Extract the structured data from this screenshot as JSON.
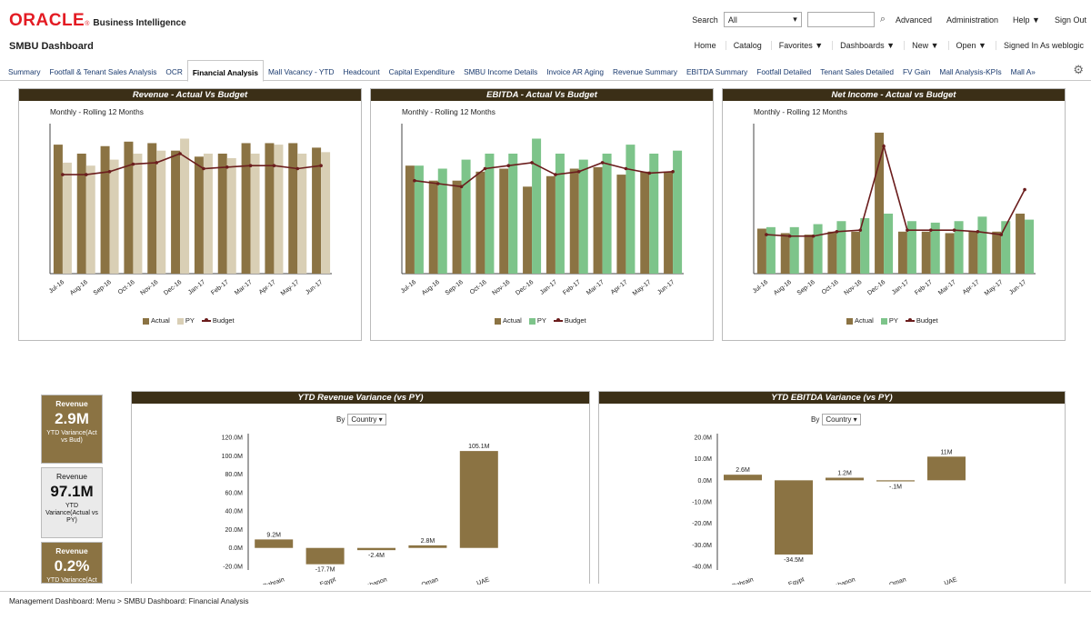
{
  "logo": {
    "brand": "ORACLE",
    "reg": "®",
    "product": "Business Intelligence"
  },
  "top": {
    "search_label": "Search",
    "search_scope": "All",
    "links": [
      "Advanced",
      "Administration",
      "Help ▼",
      "Sign Out"
    ]
  },
  "header": {
    "dashboard_title": "SMBU Dashboard",
    "nav": [
      "Home",
      "Catalog",
      "Favorites ▼",
      "Dashboards ▼",
      "New ▼",
      "Open ▼",
      "Signed In As  weblogic"
    ]
  },
  "tabs": [
    "Summary",
    "Footfall & Tenant Sales Analysis",
    "OCR",
    "Financial Analysis",
    "Mall Vacancy - YTD",
    "Headcount",
    "Capital Expenditure",
    "SMBU Income Details",
    "Invoice AR Aging",
    "Revenue Summary",
    "EBITDA Summary",
    "Footfall Detailed",
    "Tenant Sales Detailed",
    "FV Gain",
    "Mall Analysis-KPIs",
    "Mall A»"
  ],
  "active_tab": "Financial Analysis",
  "colors": {
    "actual": "#8b7343",
    "py_revenue": "#d9cfb5",
    "py_green": "#7dc48a",
    "budget": "#6b1d1d",
    "title_bar": "#3b2f17"
  },
  "panels": {
    "revenue_title": "Revenue - Actual Vs Budget",
    "ebitda_title": "EBITDA - Actual Vs Budget",
    "netincome_title": "Net Income - Actual vs Budget",
    "subtitle": "Monthly - Rolling 12 Months",
    "ytd_revenue_title": "YTD Revenue Variance (vs PY)",
    "ytd_ebitda_title": "YTD EBITDA Variance (vs PY)",
    "by_label": "By",
    "by_value": "Country"
  },
  "legend": {
    "actual": "Actual",
    "py": "PY",
    "budget": "Budget"
  },
  "kpis": [
    {
      "label": "Revenue",
      "value": "2.9M",
      "desc": "YTD Variance(Act vs Bud)"
    },
    {
      "label": "Revenue",
      "value": "97.1M",
      "desc": "YTD Variance(Actual vs PY)"
    },
    {
      "label": "Revenue",
      "value": "0.2%",
      "desc": "YTD Variance(Act"
    }
  ],
  "breadcrumb": "Management Dashboard: Menu  >  SMBU Dashboard: Financial Analysis",
  "chart_data": [
    {
      "type": "bar",
      "title": "Revenue - Actual Vs Budget",
      "subtitle": "Monthly - Rolling 12 Months",
      "categories": [
        "Jul-16",
        "Aug-16",
        "Sep-16",
        "Oct-16",
        "Nov-16",
        "Dec-16",
        "Jan-17",
        "Feb-17",
        "Mar-17",
        "Apr-17",
        "May-17",
        "Jun-17"
      ],
      "series": [
        {
          "name": "Actual",
          "kind": "bar",
          "values": [
            86,
            80,
            85,
            88,
            87,
            82,
            78,
            80,
            87,
            87,
            87,
            84
          ]
        },
        {
          "name": "PY",
          "kind": "bar",
          "values": [
            74,
            72,
            76,
            80,
            82,
            90,
            80,
            77,
            80,
            86,
            80,
            81
          ]
        },
        {
          "name": "Budget",
          "kind": "line",
          "values": [
            66,
            66,
            68,
            73,
            74,
            80,
            70,
            71,
            72,
            72,
            70,
            72
          ]
        }
      ],
      "ylim": [
        0,
        100
      ]
    },
    {
      "type": "bar",
      "title": "EBITDA - Actual Vs Budget",
      "subtitle": "Monthly - Rolling 12 Months",
      "categories": [
        "Jul-16",
        "Aug-16",
        "Sep-16",
        "Oct-16",
        "Nov-16",
        "Dec-16",
        "Jan-17",
        "Feb-17",
        "Mar-17",
        "Apr-17",
        "May-17",
        "Jun-17"
      ],
      "series": [
        {
          "name": "Actual",
          "kind": "bar",
          "values": [
            72,
            62,
            62,
            68,
            70,
            58,
            65,
            70,
            71,
            66,
            68,
            68
          ]
        },
        {
          "name": "PY",
          "kind": "bar",
          "values": [
            72,
            70,
            76,
            80,
            80,
            90,
            80,
            76,
            80,
            86,
            80,
            82
          ]
        },
        {
          "name": "Budget",
          "kind": "line",
          "values": [
            62,
            60,
            58,
            70,
            72,
            74,
            66,
            68,
            74,
            70,
            67,
            68
          ]
        }
      ],
      "ylim": [
        0,
        100
      ]
    },
    {
      "type": "bar",
      "title": "Net Income - Actual vs Budget",
      "subtitle": "Monthly - Rolling 12 Months",
      "categories": [
        "Jul-16",
        "Aug-16",
        "Sep-16",
        "Oct-16",
        "Nov-16",
        "Dec-16",
        "Jan-17",
        "Feb-17",
        "Mar-17",
        "Apr-17",
        "May-17",
        "Jun-17"
      ],
      "series": [
        {
          "name": "Actual",
          "kind": "bar",
          "values": [
            30,
            27,
            26,
            28,
            28,
            94,
            28,
            28,
            27,
            28,
            28,
            40
          ]
        },
        {
          "name": "PY",
          "kind": "bar",
          "values": [
            31,
            31,
            33,
            35,
            37,
            40,
            35,
            34,
            35,
            38,
            35,
            36
          ]
        },
        {
          "name": "Budget",
          "kind": "line",
          "values": [
            26,
            25,
            25,
            28,
            29,
            85,
            29,
            29,
            29,
            28,
            26,
            56
          ]
        }
      ],
      "ylim": [
        0,
        100
      ]
    },
    {
      "type": "bar",
      "title": "YTD Revenue Variance (vs PY)",
      "categories": [
        "Bahrain",
        "Egypt",
        "Lebanon",
        "Oman",
        "UAE"
      ],
      "values": [
        9.2,
        -17.7,
        -2.4,
        2.8,
        105.1
      ],
      "data_labels": [
        "9.2M",
        "-17.7M",
        "-2.4M",
        "2.8M",
        "105.1M"
      ],
      "yticks": [
        "120.0M",
        "100.0M",
        "80.0M",
        "60.0M",
        "40.0M",
        "20.0M",
        "0.0M",
        "-20.0M"
      ],
      "ylim": [
        -20,
        120
      ]
    },
    {
      "type": "bar",
      "title": "YTD EBITDA Variance (vs PY)",
      "categories": [
        "Bahrain",
        "Egypt",
        "Lebanon",
        "Oman",
        "UAE"
      ],
      "values": [
        2.6,
        -34.5,
        1.2,
        -0.1,
        11
      ],
      "data_labels": [
        "2.6M",
        "-34.5M",
        "1.2M",
        "-.1M",
        "11M"
      ],
      "yticks": [
        "20.0M",
        "10.0M",
        "0.0M",
        "-10.0M",
        "-20.0M",
        "-30.0M",
        "-40.0M"
      ],
      "ylim": [
        -40,
        20
      ]
    }
  ]
}
